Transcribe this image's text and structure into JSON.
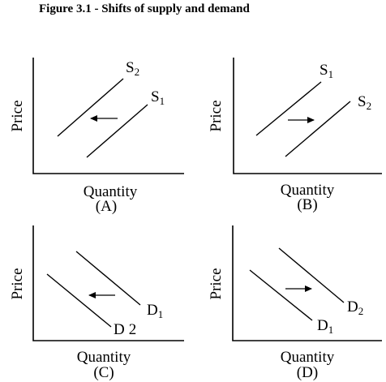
{
  "title": "Figure 3.1 - Shifts of supply and demand",
  "panels": [
    {
      "id": "A",
      "ylabel": "Price",
      "xlabel": "Quantity",
      "panel_label": "(A)",
      "curves": [
        {
          "letter": "S",
          "sub": "2"
        },
        {
          "letter": "S",
          "sub": "1"
        }
      ],
      "arrow_direction": "left"
    },
    {
      "id": "B",
      "ylabel": "Price",
      "xlabel": "Quantity",
      "panel_label": "(B)",
      "curves": [
        {
          "letter": "S",
          "sub": "1"
        },
        {
          "letter": "S",
          "sub": "2"
        }
      ],
      "arrow_direction": "right"
    },
    {
      "id": "C",
      "ylabel": "Price",
      "xlabel": "Quantity",
      "panel_label": "(C)",
      "curves": [
        {
          "letter": "D",
          "sub": "1"
        },
        {
          "letter": "D",
          "sub": "2"
        }
      ],
      "arrow_direction": "left"
    },
    {
      "id": "D",
      "ylabel": "Price",
      "xlabel": "Quantity",
      "panel_label": "(D)",
      "curves": [
        {
          "letter": "D",
          "sub": "2"
        },
        {
          "letter": "D",
          "sub": "1"
        }
      ],
      "arrow_direction": "right"
    }
  ]
}
